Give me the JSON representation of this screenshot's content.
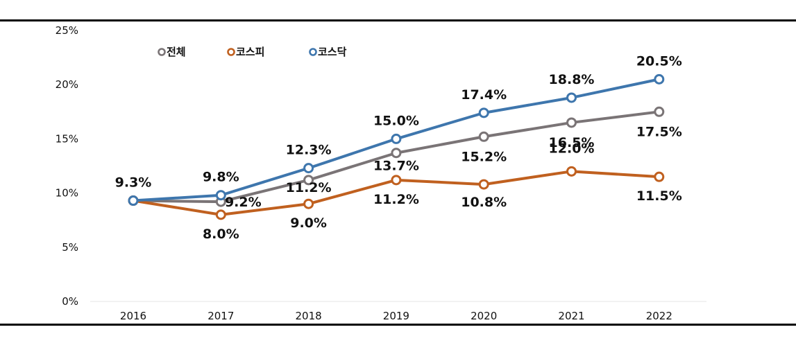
{
  "chart_data": {
    "type": "line",
    "title": "",
    "xlabel": "",
    "ylabel": "",
    "categories": [
      "2016",
      "2017",
      "2018",
      "2019",
      "2020",
      "2021",
      "2022"
    ],
    "y_ticks": [
      "0%",
      "5%",
      "10%",
      "15%",
      "20%",
      "25%"
    ],
    "ylim": [
      0,
      25
    ],
    "grid": false,
    "legend_position": "top-left",
    "series": [
      {
        "name": "전체",
        "color": "#7a7476",
        "values": [
          9.3,
          9.2,
          11.2,
          13.7,
          15.2,
          16.5,
          17.5
        ],
        "labels": [
          "",
          "9.2%",
          "11.2%",
          "13.7%",
          "15.2%",
          "16.5%",
          "17.5%"
        ]
      },
      {
        "name": "코스피",
        "color": "#c0601f",
        "values": [
          9.3,
          8.0,
          9.0,
          11.2,
          10.8,
          12.0,
          11.5
        ],
        "labels": [
          "",
          "8.0%",
          "9.0%",
          "11.2%",
          "10.8%",
          "12.0%",
          "11.5%"
        ]
      },
      {
        "name": "코스닥",
        "color": "#3e76ad",
        "values": [
          9.3,
          9.8,
          12.3,
          15.0,
          17.4,
          18.8,
          20.5
        ],
        "labels": [
          "9.3%",
          "9.8%",
          "12.3%",
          "15.0%",
          "17.4%",
          "18.8%",
          "20.5%"
        ]
      }
    ]
  }
}
